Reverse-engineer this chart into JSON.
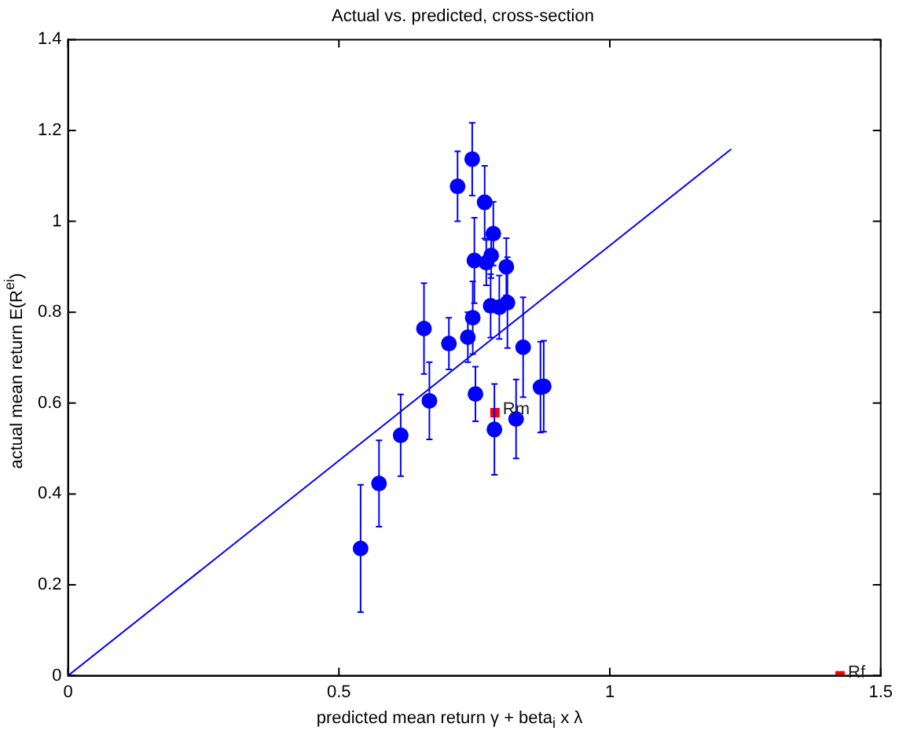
{
  "chart_data": {
    "type": "scatter",
    "title": "Actual vs. predicted, cross-section",
    "xlabel": "predicted mean return γ + beta$_{i}$ x λ",
    "ylabel": "actual mean return E(R$^{ei}$)",
    "xlim": [
      0,
      1.5
    ],
    "xticks": [
      0,
      0.5,
      1,
      1.5
    ],
    "ylim": [
      0,
      1.4
    ],
    "yticks": [
      0,
      0.2,
      0.4,
      0.6,
      0.8,
      1,
      1.2,
      1.4
    ],
    "grid": false,
    "legend": false,
    "series": [
      {
        "color": "#0000ff",
        "marker": "circle",
        "x": [
          0.54,
          0.574,
          0.614,
          0.667,
          0.752,
          0.787,
          0.827,
          0.872,
          0.878,
          0.719,
          0.746,
          0.769,
          0.785,
          0.75,
          0.772,
          0.781,
          0.809,
          0.78,
          0.796,
          0.811,
          0.747,
          0.738,
          0.657,
          0.703,
          0.84
        ],
        "values": [
          0.28,
          0.423,
          0.529,
          0.605,
          0.62,
          0.542,
          0.565,
          0.635,
          0.637,
          1.077,
          1.137,
          1.042,
          0.973,
          0.914,
          0.909,
          0.925,
          0.9,
          0.814,
          0.811,
          0.821,
          0.788,
          0.745,
          0.764,
          0.731,
          0.723
        ],
        "errors": [
          0.14,
          0.095,
          0.09,
          0.085,
          0.06,
          0.1,
          0.087,
          0.1,
          0.1,
          0.077,
          0.08,
          0.08,
          0.07,
          0.094,
          0.05,
          0.05,
          0.063,
          0.07,
          0.07,
          0.1,
          0.08,
          0.055,
          0.1,
          0.057,
          0.11
        ]
      },
      {
        "color": "#ff0000",
        "marker": "square",
        "x": [
          0.788,
          1.425
        ],
        "values": [
          0.579,
          0
        ]
      },
      {
        "type": "line",
        "color": "#0000ff",
        "marker": "none",
        "x": [
          0,
          1.224
        ],
        "values": [
          0,
          1.159
        ]
      }
    ],
    "annotations": [
      {
        "text": "Rm",
        "x": 0.788,
        "y": 0.579
      },
      {
        "text": "Rf",
        "x": 1.425,
        "y": 0
      }
    ]
  }
}
